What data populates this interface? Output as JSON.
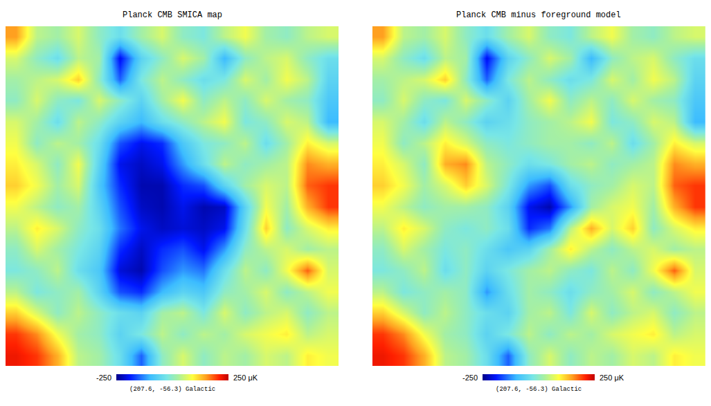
{
  "chart_data": [
    {
      "type": "heatmap",
      "title": "Planck CMB SMICA map",
      "subtitle": "(207.6, -56.3) Galactic",
      "tick_labels": false,
      "color_range": [
        -250,
        250
      ],
      "color_ticks": [
        -250,
        {
          "value": 250,
          "label": "250 μK"
        }
      ],
      "cells": [
        [
          150,
          40,
          20,
          60,
          0,
          -40,
          20,
          60,
          0,
          -20,
          40,
          80,
          20,
          0,
          40,
          60
        ],
        [
          60,
          0,
          -40,
          40,
          20,
          -200,
          -60,
          0,
          60,
          20,
          -100,
          0,
          40,
          60,
          0,
          -40
        ],
        [
          20,
          40,
          60,
          120,
          0,
          -150,
          -20,
          40,
          0,
          -40,
          -20,
          60,
          20,
          80,
          40,
          -60
        ],
        [
          0,
          60,
          0,
          -20,
          60,
          0,
          -60,
          20,
          80,
          0,
          40,
          0,
          60,
          20,
          0,
          -80
        ],
        [
          60,
          20,
          -40,
          40,
          0,
          -60,
          -100,
          -40,
          0,
          40,
          80,
          -20,
          0,
          60,
          40,
          -100
        ],
        [
          80,
          0,
          40,
          20,
          -40,
          -160,
          -200,
          -180,
          -80,
          -20,
          0,
          40,
          -40,
          20,
          100,
          60
        ],
        [
          100,
          60,
          0,
          80,
          -60,
          -200,
          -220,
          -200,
          -120,
          -40,
          40,
          0,
          20,
          40,
          160,
          140
        ],
        [
          120,
          80,
          20,
          60,
          -80,
          -180,
          -230,
          -230,
          -180,
          -160,
          -60,
          20,
          60,
          40,
          180,
          200
        ],
        [
          80,
          40,
          0,
          20,
          -60,
          -160,
          -220,
          -230,
          -200,
          -230,
          -220,
          -60,
          80,
          20,
          140,
          200
        ],
        [
          40,
          100,
          60,
          0,
          -40,
          -140,
          -200,
          -220,
          -210,
          -220,
          -200,
          -40,
          120,
          0,
          60,
          100
        ],
        [
          0,
          60,
          20,
          -20,
          -60,
          -180,
          -220,
          -180,
          -160,
          -200,
          -120,
          0,
          40,
          60,
          20,
          40
        ],
        [
          -20,
          0,
          40,
          -40,
          -80,
          -210,
          -230,
          -160,
          -120,
          -140,
          -40,
          40,
          0,
          80,
          180,
          60
        ],
        [
          40,
          -20,
          0,
          20,
          -60,
          -160,
          -180,
          -100,
          -60,
          -80,
          0,
          20,
          60,
          0,
          40,
          80
        ],
        [
          120,
          60,
          0,
          40,
          0,
          -40,
          -60,
          20,
          40,
          -20,
          60,
          0,
          40,
          60,
          0,
          40
        ],
        [
          200,
          160,
          80,
          20,
          0,
          -60,
          -20,
          40,
          0,
          40,
          20,
          60,
          80,
          100,
          40,
          60
        ],
        [
          220,
          200,
          140,
          40,
          20,
          -40,
          -150,
          0,
          60,
          0,
          40,
          20,
          60,
          40,
          100,
          80
        ]
      ]
    },
    {
      "type": "heatmap",
      "title": "Planck CMB minus foreground model",
      "subtitle": "(207.6, -56.3) Galactic",
      "tick_labels": false,
      "color_range": [
        -250,
        250
      ],
      "color_ticks": [
        -250,
        {
          "value": 250,
          "label": "250 μK"
        }
      ],
      "cells": [
        [
          150,
          40,
          20,
          60,
          0,
          -40,
          20,
          60,
          0,
          -20,
          40,
          80,
          20,
          0,
          40,
          60
        ],
        [
          60,
          0,
          -40,
          40,
          20,
          -200,
          -60,
          0,
          60,
          20,
          -100,
          0,
          40,
          60,
          0,
          -40
        ],
        [
          20,
          40,
          60,
          120,
          0,
          -150,
          -20,
          40,
          0,
          -40,
          -20,
          60,
          20,
          80,
          40,
          -60
        ],
        [
          0,
          60,
          0,
          -20,
          60,
          0,
          -60,
          20,
          80,
          0,
          40,
          0,
          60,
          20,
          0,
          -80
        ],
        [
          60,
          20,
          -40,
          40,
          0,
          -60,
          -40,
          0,
          20,
          40,
          80,
          -20,
          0,
          60,
          40,
          -100
        ],
        [
          80,
          0,
          40,
          100,
          60,
          0,
          -20,
          0,
          20,
          20,
          0,
          40,
          -40,
          20,
          100,
          60
        ],
        [
          100,
          60,
          0,
          140,
          160,
          40,
          0,
          -40,
          -20,
          20,
          40,
          0,
          20,
          40,
          160,
          140
        ],
        [
          120,
          80,
          20,
          60,
          120,
          60,
          -20,
          -120,
          -160,
          -40,
          0,
          20,
          60,
          40,
          180,
          200
        ],
        [
          80,
          40,
          0,
          20,
          20,
          0,
          -60,
          -200,
          -230,
          -120,
          20,
          60,
          80,
          20,
          140,
          200
        ],
        [
          40,
          100,
          60,
          0,
          -20,
          0,
          -40,
          -180,
          -140,
          40,
          140,
          60,
          120,
          0,
          60,
          100
        ],
        [
          0,
          60,
          20,
          -20,
          0,
          -40,
          -80,
          -60,
          20,
          100,
          40,
          0,
          40,
          60,
          20,
          40
        ],
        [
          -20,
          0,
          40,
          -40,
          0,
          -60,
          -20,
          20,
          40,
          0,
          -20,
          40,
          0,
          80,
          180,
          60
        ],
        [
          40,
          -20,
          0,
          20,
          0,
          -120,
          -40,
          20,
          0,
          -40,
          0,
          20,
          60,
          0,
          40,
          80
        ],
        [
          120,
          60,
          0,
          40,
          0,
          -40,
          -60,
          20,
          40,
          -20,
          60,
          0,
          40,
          60,
          0,
          40
        ],
        [
          200,
          160,
          80,
          20,
          0,
          -60,
          -20,
          40,
          0,
          40,
          20,
          60,
          80,
          100,
          40,
          60
        ],
        [
          220,
          200,
          140,
          40,
          20,
          -40,
          -150,
          0,
          60,
          0,
          40,
          20,
          60,
          40,
          100,
          80
        ]
      ]
    }
  ]
}
